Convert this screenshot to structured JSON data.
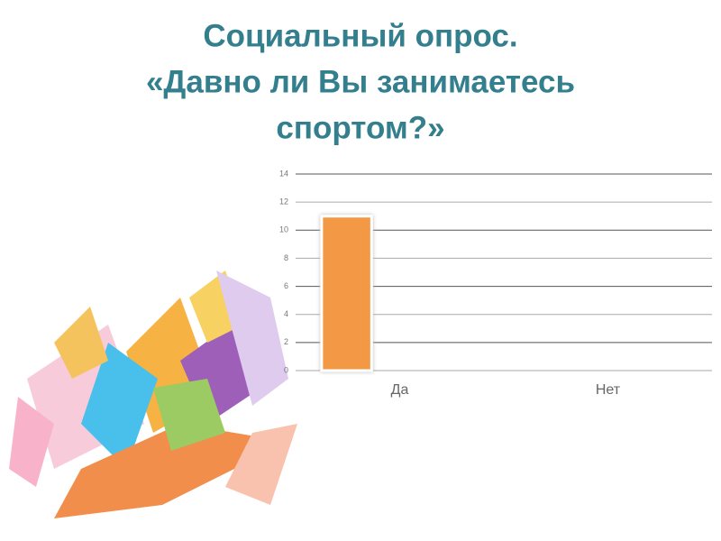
{
  "chart_data": {
    "type": "bar",
    "title": [
      "Социальный опрос.",
      "«Давно ли Вы занимаетесь",
      "спортом?»"
    ],
    "categories": [
      "Да",
      "Нет"
    ],
    "values": [
      11,
      0
    ],
    "color": "#f39845",
    "ylim": [
      0,
      14
    ],
    "yticks": [
      0,
      2,
      4,
      6,
      8,
      10,
      12,
      14
    ],
    "grid": true
  }
}
